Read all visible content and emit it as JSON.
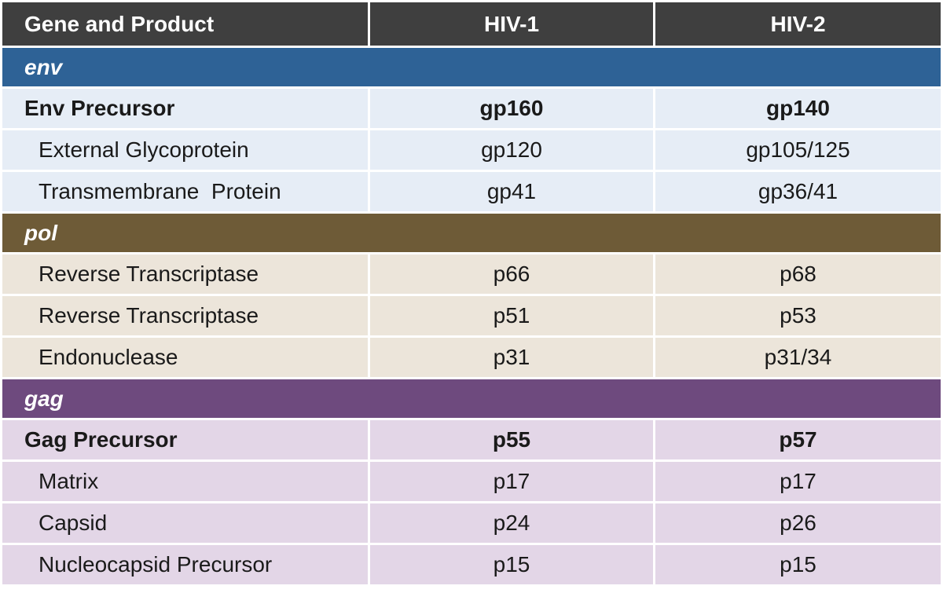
{
  "header": {
    "col1": "Gene and Product",
    "col2": "HIV-1",
    "col3": "HIV-2"
  },
  "colors": {
    "header_bg": "#3f3f3f",
    "env_group": "#2e6296",
    "env_row": "#e6edf6",
    "pol_group": "#6e5b37",
    "pol_row": "#ece5da",
    "gag_group": "#6e4a7e",
    "gag_row": "#e3d6e7"
  },
  "groups": [
    {
      "gene": "env",
      "rows": [
        {
          "name": "Env Precursor",
          "hiv1": "gp160",
          "hiv2": "gp140",
          "bold": true
        },
        {
          "name": "External Glycoprotein",
          "hiv1": "gp120",
          "hiv2": "gp105/125"
        },
        {
          "name": "Transmembrane  Protein",
          "hiv1": "gp41",
          "hiv2": "gp36/41"
        }
      ]
    },
    {
      "gene": "pol",
      "rows": [
        {
          "name": "Reverse Transcriptase",
          "hiv1": "p66",
          "hiv2": "p68"
        },
        {
          "name": "Reverse Transcriptase",
          "hiv1": "p51",
          "hiv2": "p53"
        },
        {
          "name": "Endonuclease",
          "hiv1": "p31",
          "hiv2": "p31/34"
        }
      ]
    },
    {
      "gene": "gag",
      "rows": [
        {
          "name": "Gag Precursor",
          "hiv1": "p55",
          "hiv2": "p57",
          "bold": true
        },
        {
          "name": "Matrix",
          "hiv1": "p17",
          "hiv2": "p17"
        },
        {
          "name": "Capsid",
          "hiv1": "p24",
          "hiv2": "p26"
        },
        {
          "name": "Nucleocapsid Precursor",
          "hiv1": "p15",
          "hiv2": "p15"
        }
      ]
    }
  ]
}
